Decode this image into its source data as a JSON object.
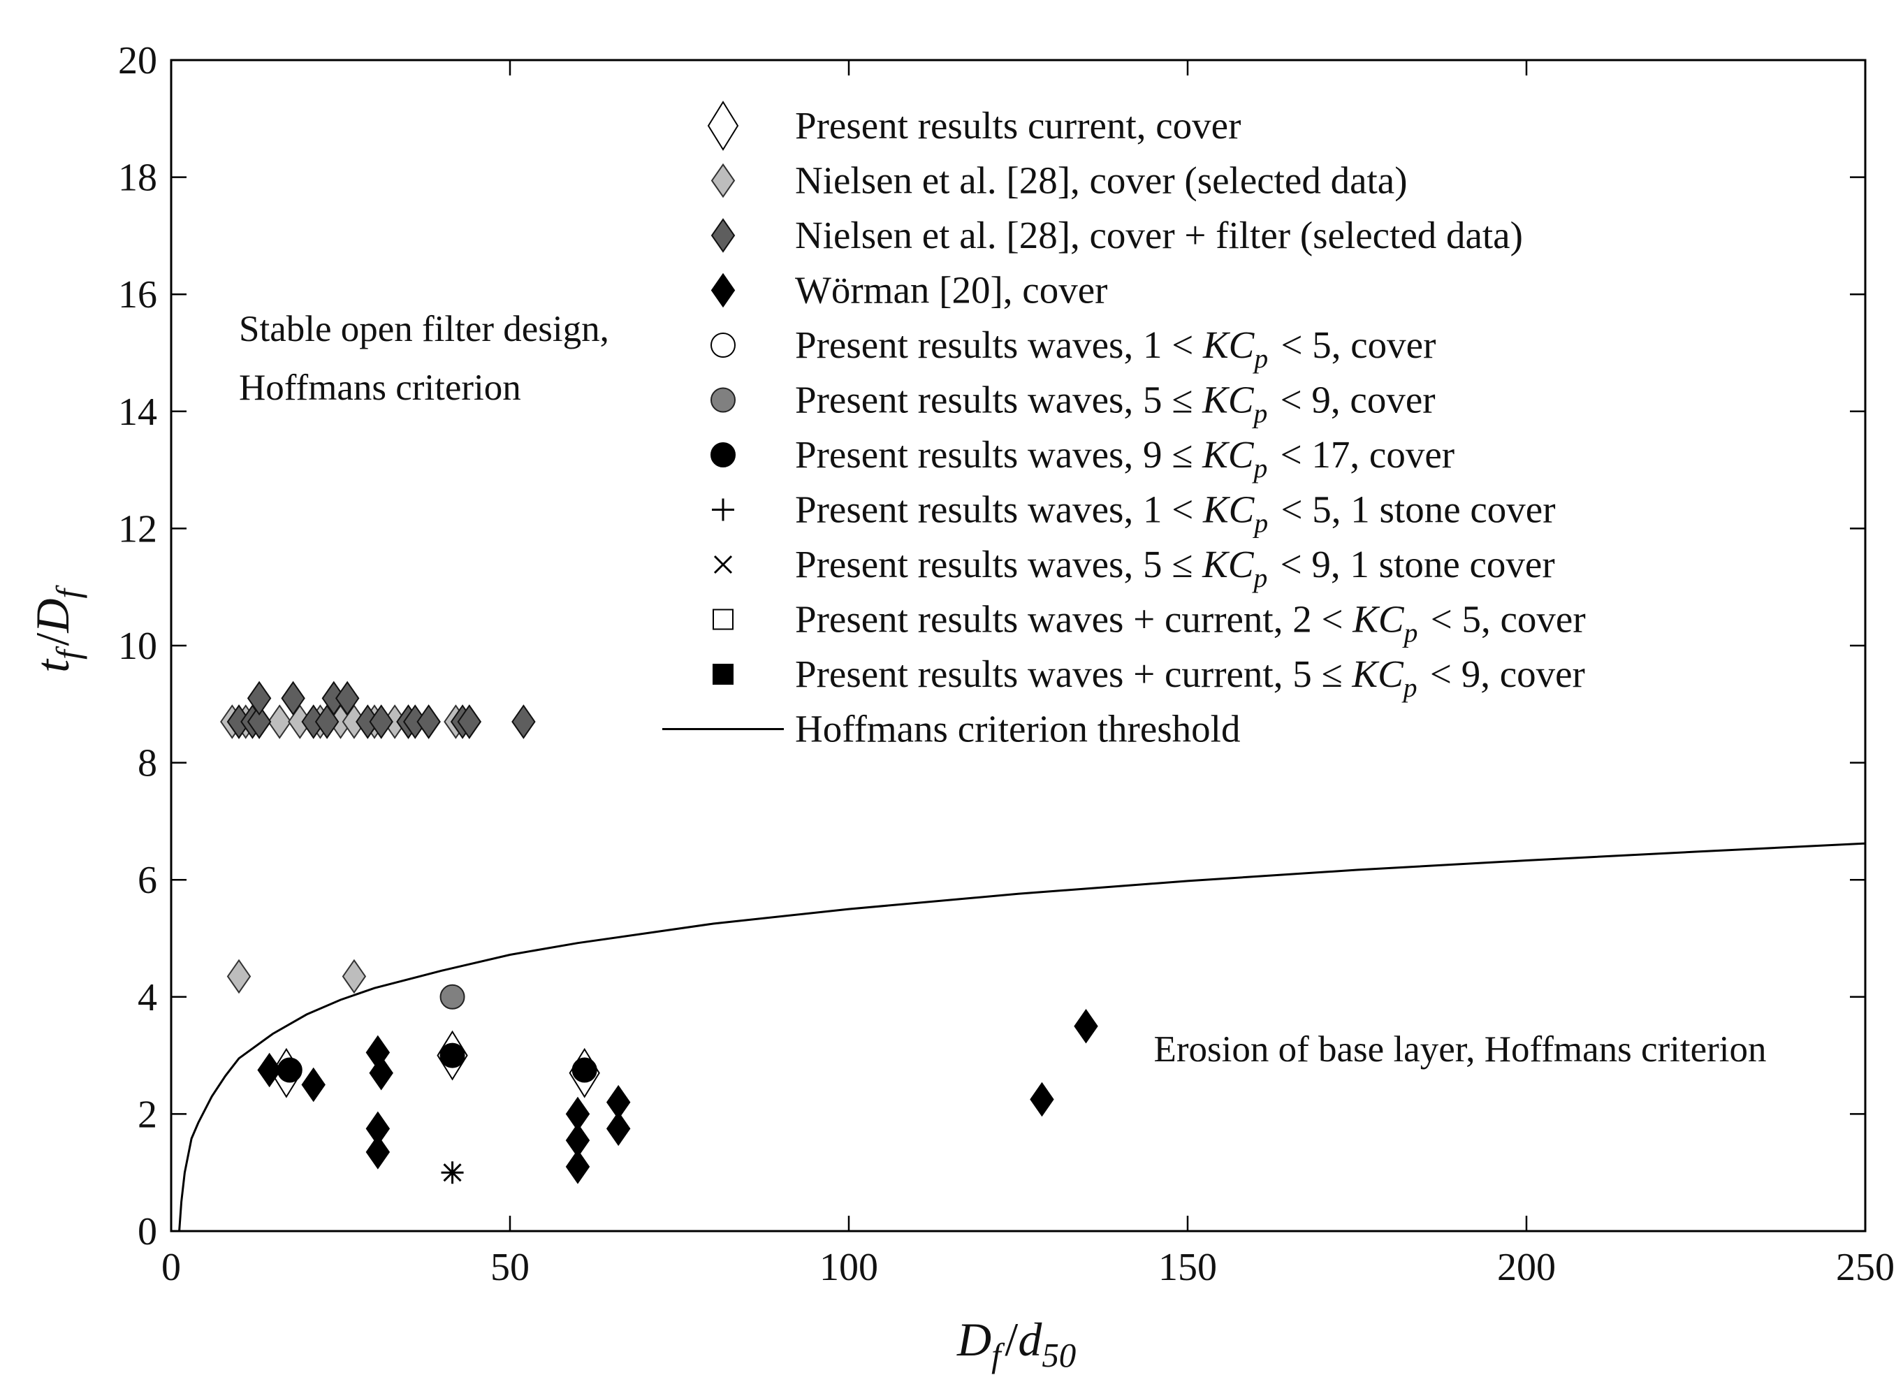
{
  "chart_data": {
    "type": "scatter",
    "title": "",
    "xlabel": "D_f / d_50",
    "ylabel": "t_f / D_f",
    "xlim": [
      0,
      250
    ],
    "ylim": [
      0,
      20
    ],
    "xticks": [
      0,
      50,
      100,
      150,
      200,
      250
    ],
    "yticks": [
      0,
      2,
      4,
      6,
      8,
      10,
      12,
      14,
      16,
      18,
      20
    ],
    "grid": false,
    "legend_position": "top-right",
    "annotations": [
      {
        "id": "stable",
        "lines": [
          "Stable open filter design,",
          "Hoffmans criterion"
        ],
        "x": 10,
        "y": 15.2
      },
      {
        "id": "erosion",
        "lines": [
          "Erosion of base layer, Hoffmans criterion"
        ],
        "x": 145,
        "y": 2.9
      }
    ],
    "series": [
      {
        "name": "Present results current, cover",
        "marker": "diamond-large-open",
        "points": [
          [
            17,
            2.7
          ],
          [
            41.5,
            3.0
          ],
          [
            61,
            2.7
          ]
        ]
      },
      {
        "name": "Nielsen et al. [28], cover (selected data)",
        "marker": "diamond-lightgray",
        "points": [
          [
            9,
            8.7
          ],
          [
            10,
            8.7
          ],
          [
            11,
            8.7
          ],
          [
            13,
            8.7
          ],
          [
            16,
            8.7
          ],
          [
            19,
            8.7
          ],
          [
            22,
            8.7
          ],
          [
            25,
            8.7
          ],
          [
            27,
            8.7
          ],
          [
            30,
            8.7
          ],
          [
            33,
            8.7
          ],
          [
            35,
            8.7
          ],
          [
            38,
            8.7
          ],
          [
            42,
            8.7
          ],
          [
            44,
            8.7
          ],
          [
            10,
            4.35
          ],
          [
            27,
            4.35
          ]
        ]
      },
      {
        "name": "Nielsen et al. [28], cover + filter (selected data)",
        "marker": "diamond-darkgray",
        "points": [
          [
            10,
            8.7
          ],
          [
            12,
            8.7
          ],
          [
            13,
            8.7
          ],
          [
            13,
            9.1
          ],
          [
            18,
            9.1
          ],
          [
            21,
            8.7
          ],
          [
            23,
            8.7
          ],
          [
            24,
            9.1
          ],
          [
            26,
            9.1
          ],
          [
            29,
            8.7
          ],
          [
            31,
            8.7
          ],
          [
            35,
            8.7
          ],
          [
            36,
            8.7
          ],
          [
            38,
            8.7
          ],
          [
            43,
            8.7
          ],
          [
            44,
            8.7
          ],
          [
            52,
            8.7
          ]
        ]
      },
      {
        "name": "Wörman [20], cover",
        "marker": "diamond-black",
        "points": [
          [
            14.5,
            2.75
          ],
          [
            21,
            2.5
          ],
          [
            30.5,
            3.05
          ],
          [
            31,
            2.7
          ],
          [
            30.5,
            1.75
          ],
          [
            30.5,
            1.35
          ],
          [
            60,
            2.0
          ],
          [
            60,
            1.55
          ],
          [
            60,
            1.1
          ],
          [
            66,
            2.2
          ],
          [
            66,
            1.75
          ],
          [
            128.5,
            2.25
          ],
          [
            135,
            3.5
          ]
        ]
      },
      {
        "name": "Present results waves, 1 < KC_p < 5, cover",
        "marker": "circle-open",
        "points": []
      },
      {
        "name": "Present results waves, 5 ≤ KC_p < 9, cover",
        "marker": "circle-gray",
        "points": [
          [
            41.5,
            4.0
          ]
        ]
      },
      {
        "name": "Present results waves, 9 ≤ KC_p < 17, cover",
        "marker": "circle-black",
        "points": [
          [
            17.5,
            2.75
          ],
          [
            41.5,
            3.0
          ],
          [
            61,
            2.75
          ]
        ]
      },
      {
        "name": "Present results waves, 1 < KC_p < 5, 1 stone cover",
        "marker": "plus",
        "points": [
          [
            41.5,
            1.0
          ]
        ]
      },
      {
        "name": "Present results waves, 5 ≤ KC_p < 9, 1 stone cover",
        "marker": "cross",
        "points": [
          [
            41.5,
            1.0
          ]
        ]
      },
      {
        "name": "Present results waves + current, 2 < KC_p < 5, cover",
        "marker": "square-open",
        "points": []
      },
      {
        "name": "Present results waves + current, 5 ≤ KC_p < 9, cover",
        "marker": "square-black",
        "points": []
      },
      {
        "name": "Hoffmans criterion threshold",
        "marker": "line",
        "points": [
          [
            1.2,
            0.0
          ],
          [
            1.5,
            0.5
          ],
          [
            2,
            1.0
          ],
          [
            3,
            1.58
          ],
          [
            4,
            1.85
          ],
          [
            6,
            2.3
          ],
          [
            8,
            2.65
          ],
          [
            10,
            2.95
          ],
          [
            15,
            3.37
          ],
          [
            20,
            3.7
          ],
          [
            25,
            3.95
          ],
          [
            30,
            4.15
          ],
          [
            40,
            4.45
          ],
          [
            50,
            4.72
          ],
          [
            60,
            4.92
          ],
          [
            80,
            5.25
          ],
          [
            100,
            5.5
          ],
          [
            125,
            5.76
          ],
          [
            150,
            5.98
          ],
          [
            175,
            6.17
          ],
          [
            200,
            6.33
          ],
          [
            225,
            6.48
          ],
          [
            250,
            6.62
          ]
        ]
      }
    ]
  }
}
